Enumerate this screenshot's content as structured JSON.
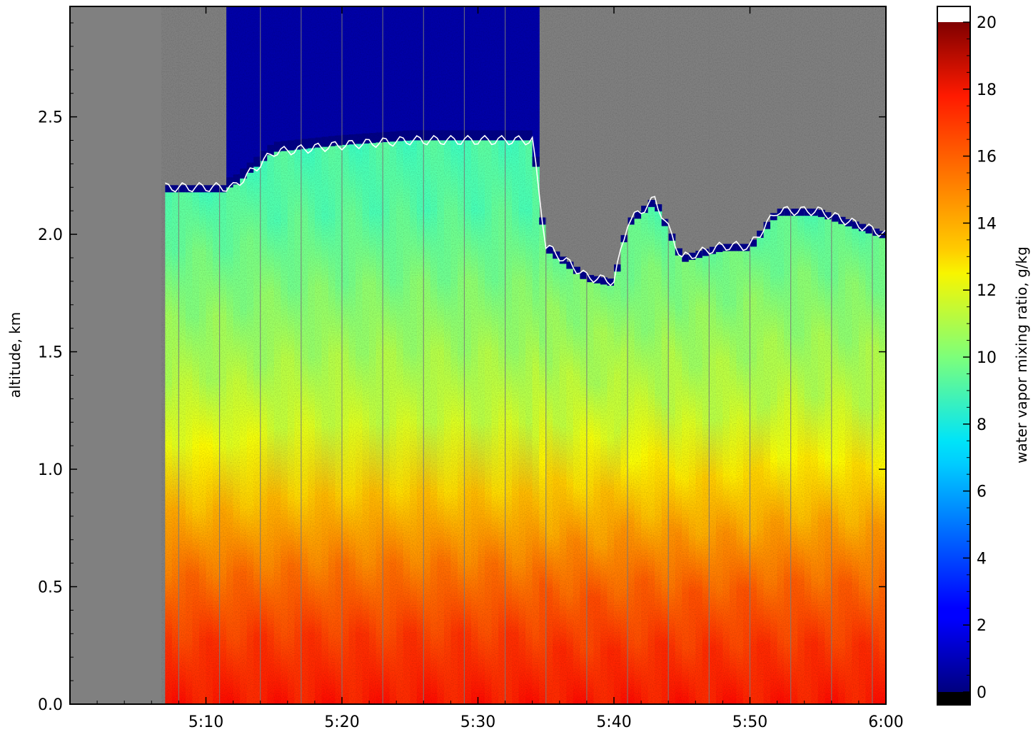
{
  "chart_data": {
    "type": "heatmap",
    "title": "",
    "xlabel": "",
    "ylabel": "altitude, km",
    "colorbar_label": "water vapor mixing ratio, g/kg",
    "colormap": "jet",
    "colorbar_ticks": [
      "0",
      "2",
      "4",
      "6",
      "8",
      "10",
      "12",
      "14",
      "16",
      "18",
      "20"
    ],
    "colorbar_range": [
      0,
      20
    ],
    "x_tick_labels": [
      "5:10",
      "5:20",
      "5:30",
      "5:40",
      "5:50",
      "6:00"
    ],
    "xlim": [
      "5:00",
      "6:00"
    ],
    "y_tick_labels": [
      "0.0",
      "0.5",
      "1.0",
      "1.5",
      "2.0",
      "2.5"
    ],
    "ylim": [
      0,
      2.97
    ],
    "no_data_color": "#808080",
    "contour_color": "#ffffff",
    "data_start_time": "5:07",
    "vertical_profile": {
      "altitude_km": [
        0.0,
        0.2,
        0.4,
        0.6,
        0.8,
        1.0,
        1.2,
        1.4,
        1.6,
        1.8,
        2.0,
        2.2
      ],
      "mixing_ratio_gkg": [
        17.0,
        16.5,
        16.0,
        15.0,
        14.0,
        13.0,
        11.5,
        11.0,
        10.5,
        10.0,
        9.5,
        9.0
      ]
    },
    "boundary_layer_top": {
      "time": [
        "5:07",
        "5:12",
        "5:15",
        "5:20",
        "5:25",
        "5:30",
        "5:34",
        "5:35",
        "5:38",
        "5:40",
        "5:41",
        "5:43",
        "5:45",
        "5:48",
        "5:50",
        "5:52",
        "5:55",
        "6:00"
      ],
      "altitude_km": [
        2.2,
        2.2,
        2.35,
        2.38,
        2.4,
        2.4,
        2.4,
        1.95,
        1.82,
        1.8,
        2.05,
        2.15,
        1.9,
        1.95,
        1.95,
        2.1,
        2.1,
        2.0
      ]
    }
  }
}
